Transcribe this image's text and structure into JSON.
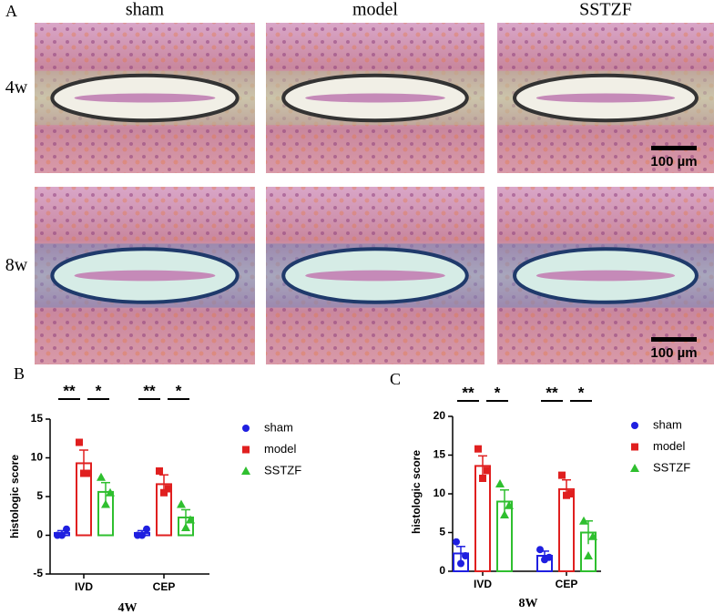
{
  "panel_a": {
    "label": "A",
    "columns": [
      "sham",
      "model",
      "SSTZF"
    ],
    "rows": [
      "4w",
      "8w"
    ],
    "scale_bar": "100 µm"
  },
  "chart_data": [
    {
      "type": "bar",
      "panel_label": "B",
      "title": "4W",
      "ylabel": "histologic score",
      "categories": [
        "IVD",
        "CEP"
      ],
      "ylim": [
        -5,
        15
      ],
      "yticks": [
        -5,
        0,
        5,
        10,
        15
      ],
      "significance": [
        [
          "**",
          "*"
        ],
        [
          "**",
          "*"
        ]
      ],
      "series": [
        {
          "name": "sham",
          "color": "#1f1fe0",
          "marker": "circle",
          "values": [
            0.3,
            0.3
          ],
          "errors": [
            0.3,
            0.3
          ],
          "points": [
            [
              0,
              0.8,
              0
            ],
            [
              0,
              0.8,
              0
            ]
          ]
        },
        {
          "name": "model",
          "color": "#e01f1f",
          "marker": "square",
          "values": [
            9.3,
            6.6
          ],
          "errors": [
            1.7,
            1.2
          ],
          "points": [
            [
              12,
              8,
              8
            ],
            [
              8.3,
              6,
              5.5
            ]
          ]
        },
        {
          "name": "SSTZF",
          "color": "#2fbf2f",
          "marker": "triangle",
          "values": [
            5.6,
            2.3
          ],
          "errors": [
            1.2,
            1.0
          ],
          "points": [
            [
              7.5,
              5.5,
              4
            ],
            [
              4,
              2,
              1
            ]
          ]
        }
      ]
    },
    {
      "type": "bar",
      "panel_label": "C",
      "title": "8W",
      "ylabel": "histologic score",
      "categories": [
        "IVD",
        "CEP"
      ],
      "ylim": [
        0,
        20
      ],
      "yticks": [
        0,
        5,
        10,
        15,
        20
      ],
      "significance": [
        [
          "**",
          "*"
        ],
        [
          "**",
          "*"
        ]
      ],
      "series": [
        {
          "name": "sham",
          "color": "#1f1fe0",
          "marker": "circle",
          "values": [
            2.3,
            2.0
          ],
          "errors": [
            0.9,
            0.6
          ],
          "points": [
            [
              3.8,
              2,
              1
            ],
            [
              2.8,
              1.8,
              1.5
            ]
          ]
        },
        {
          "name": "model",
          "color": "#e01f1f",
          "marker": "square",
          "values": [
            13.6,
            10.6
          ],
          "errors": [
            1.3,
            1.2
          ],
          "points": [
            [
              15.8,
              13,
              12
            ],
            [
              12.4,
              10,
              9.8
            ]
          ]
        },
        {
          "name": "SSTZF",
          "color": "#2fbf2f",
          "marker": "triangle",
          "values": [
            9.0,
            5.0
          ],
          "errors": [
            1.5,
            1.5
          ],
          "points": [
            [
              11.3,
              8.5,
              7.3
            ],
            [
              6.5,
              4.5,
              2
            ]
          ]
        }
      ]
    }
  ]
}
